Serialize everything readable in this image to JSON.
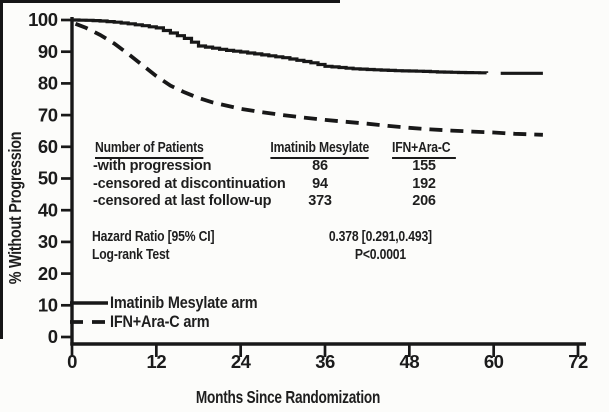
{
  "stats": {
    "patients_header": "Number of Patients",
    "col1_header": "Imatinib Mesylate",
    "col2_header": "IFN+Ara-C",
    "rows": [
      {
        "label": "-with progression",
        "imatinib": "86",
        "ifn": "155"
      },
      {
        "label": "-censored at discontinuation",
        "imatinib": "94",
        "ifn": "192"
      },
      {
        "label": "-censored at last follow-up",
        "imatinib": "373",
        "ifn": "206"
      }
    ],
    "hazard_ratio_label": "Hazard Ratio [95% CI]",
    "hazard_ratio_value": "0.378 [0.291,0.493]",
    "log_rank_label": "Log-rank Test",
    "log_rank_value": "P<0.0001"
  },
  "legend": {
    "items": [
      {
        "style": "solid",
        "label": "Imatinib Mesylate arm"
      },
      {
        "style": "dashed",
        "label": "IFN+Ara-C arm"
      }
    ]
  },
  "chart_data": {
    "type": "line",
    "subtype": "kaplan-meier",
    "title": "",
    "xlabel": "Months Since Randomization",
    "ylabel": "% Without Progression",
    "xlim": [
      0,
      72
    ],
    "ylim": [
      0,
      100
    ],
    "x_ticks": [
      0,
      12,
      24,
      36,
      48,
      60,
      72
    ],
    "y_ticks": [
      0,
      10,
      20,
      30,
      40,
      50,
      60,
      70,
      80,
      90,
      100
    ],
    "grid": false,
    "legend_position": "lower-left",
    "line_color": "#181818",
    "series": [
      {
        "name": "Imatinib Mesylate arm",
        "style": "solid",
        "render": "step",
        "segments": [
          [
            [
              0,
              100
            ],
            [
              2,
              99.9
            ],
            [
              4,
              99.7
            ],
            [
              6,
              99.3
            ],
            [
              8,
              98.8
            ],
            [
              10,
              98.2
            ],
            [
              12,
              97.5
            ],
            [
              14,
              95.9
            ],
            [
              16,
              94.2
            ],
            [
              18,
              91.8
            ],
            [
              20,
              91.1
            ],
            [
              22,
              90.4
            ],
            [
              24,
              89.9
            ],
            [
              26,
              89.3
            ],
            [
              28,
              88.7
            ],
            [
              30,
              88.1
            ],
            [
              32,
              87.3
            ],
            [
              34,
              86.5
            ],
            [
              36,
              85.4
            ],
            [
              38,
              85.0
            ],
            [
              40,
              84.6
            ],
            [
              42,
              84.4
            ],
            [
              44,
              84.2
            ],
            [
              46,
              84.0
            ],
            [
              48,
              83.9
            ],
            [
              50,
              83.8
            ],
            [
              52,
              83.6
            ],
            [
              54,
              83.5
            ],
            [
              56,
              83.4
            ],
            [
              59,
              83.3
            ]
          ],
          [
            [
              61,
              83.2
            ],
            [
              67,
              83.2
            ]
          ]
        ]
      },
      {
        "name": "IFN+Ara-C arm",
        "style": "dashed",
        "render": "line",
        "segments": [
          [
            [
              0.5,
              98.8
            ],
            [
              2,
              97.5
            ],
            [
              4,
              95.3
            ],
            [
              6,
              92.6
            ],
            [
              8,
              89.3
            ],
            [
              10,
              85.8
            ],
            [
              12,
              82.3
            ],
            [
              14,
              79.3
            ],
            [
              16,
              77.2
            ],
            [
              18,
              75.4
            ],
            [
              20,
              74.0
            ],
            [
              22,
              73.0
            ],
            [
              24,
              72.0
            ],
            [
              27,
              70.9
            ],
            [
              30,
              70.0
            ],
            [
              33,
              69.2
            ],
            [
              36,
              68.5
            ],
            [
              39,
              67.9
            ],
            [
              42,
              67.3
            ],
            [
              45,
              66.6
            ],
            [
              48,
              66.0
            ],
            [
              51,
              65.5
            ],
            [
              54,
              65.1
            ],
            [
              57,
              64.8
            ],
            [
              60,
              64.5
            ],
            [
              63,
              64.1
            ],
            [
              67,
              63.8
            ]
          ]
        ]
      }
    ]
  }
}
